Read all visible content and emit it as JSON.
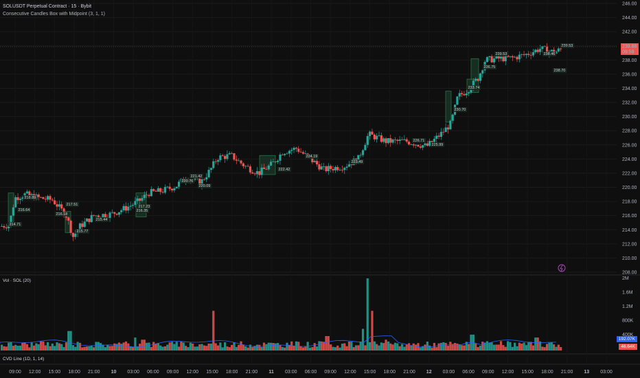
{
  "header": {
    "title": "SOLUSDT Perpetual Contract · 15 · Bybit",
    "indicator": "Consecutive Candles Box with Midpoint (3, 1, 1)"
  },
  "price_axis": [
    "246.00",
    "244.00",
    "242.00",
    "240.00",
    "238.00",
    "236.00",
    "234.00",
    "232.00",
    "230.00",
    "228.00",
    "226.00",
    "224.00",
    "222.00",
    "220.00",
    "218.00",
    "216.00",
    "214.00",
    "212.00",
    "210.00",
    "208.00"
  ],
  "volume_pane": {
    "title": "Vol · SOL (20)",
    "axis": [
      "2M",
      "1.6M",
      "1.2M",
      "800K",
      "400K"
    ],
    "tags": {
      "blue": "192.07K",
      "red": "46.64K"
    }
  },
  "cvd_pane": {
    "title": "CVD Line (1D, 1, 14)"
  },
  "time_axis": [
    "09:00",
    "12:00",
    "15:00",
    "18:00",
    "21:00",
    "10",
    "03:00",
    "06:00",
    "09:00",
    "12:00",
    "15:00",
    "18:00",
    "21:00",
    "11",
    "03:00",
    "06:00",
    "09:00",
    "12:00",
    "15:00",
    "18:00",
    "21:00",
    "12",
    "03:00",
    "06:00",
    "09:00",
    "12:00",
    "15:00",
    "18:00",
    "21:00",
    "13",
    "03:00"
  ],
  "last_price": {
    "value": "239.88",
    "countdown": "09:59"
  },
  "box_labels": [
    "214.71",
    "216.64",
    "218.89",
    "217.51",
    "216.18",
    "215.77",
    "215.44",
    "217.23",
    "216.35",
    "220.76",
    "221.42",
    "220.09",
    "222.42",
    "224.19",
    "223.49",
    "225.99",
    "226.71",
    "230.70",
    "233.74",
    "236.75",
    "239.53",
    "238.46",
    "238.70",
    "239.53"
  ],
  "colors": {
    "up": "#26a69a",
    "down": "#ef5350",
    "box_fill": "#1b3a2b",
    "box_border": "#2f7a4d",
    "vol_ma": "#2962ff"
  }
}
